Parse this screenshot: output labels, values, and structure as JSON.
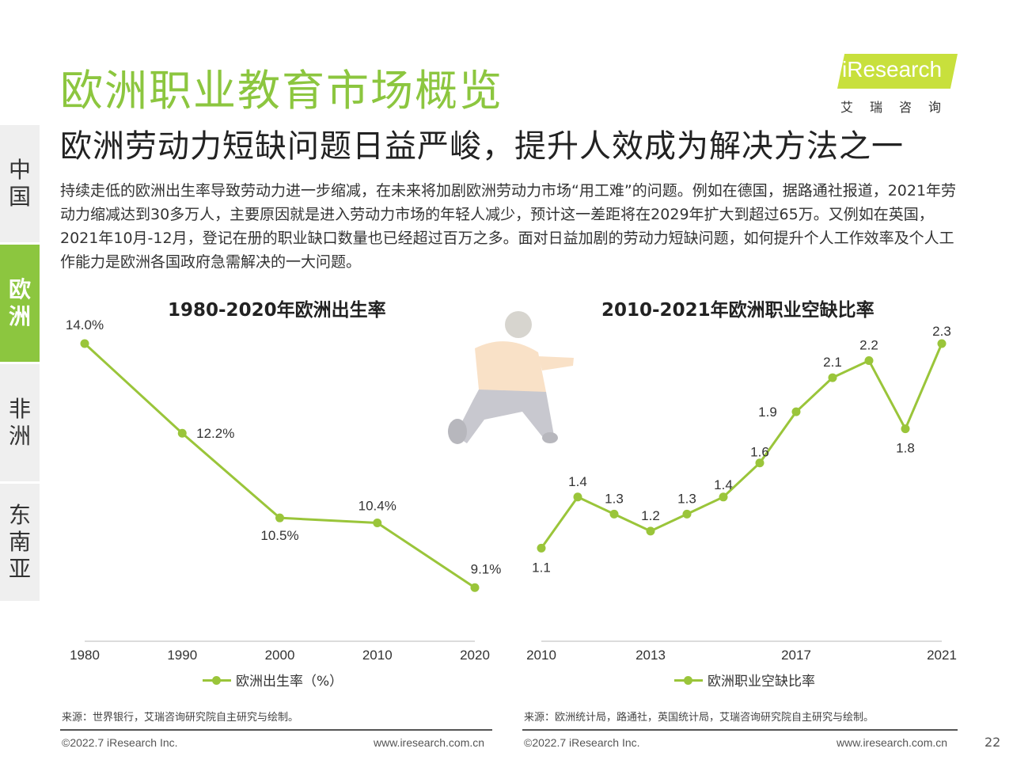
{
  "page": {
    "title": "欧洲职业教育市场概览",
    "subtitle": "欧洲劳动力短缺问题日益严峻，提升人效成为解决方法之一",
    "body": "持续走低的欧洲出生率导致劳动力进一步缩减，在未来将加剧欧洲劳动力市场“用工难”的问题。例如在德国，据路通社报道，2021年劳动力缩减达到30多万人，主要原因就是进入劳动力市场的年轻人减少，预计这一差距将在2029年扩大到超过65万。又例如在英国，2021年10月-12月，登记在册的职业缺口数量也已经超过百万之多。面对日益加剧的劳动力短缺问题，如何提升个人工作效率及个人工作能力是欧洲各国政府急需解决的一大问题。",
    "page_number": "22"
  },
  "logo": {
    "text": "iResearch",
    "cn": "艾瑞咨询"
  },
  "sidebar": {
    "items": [
      {
        "label": "中国",
        "active": false
      },
      {
        "label": "欧洲",
        "active": true
      },
      {
        "label": "非洲",
        "active": false
      },
      {
        "label": "东南亚",
        "active": false
      }
    ]
  },
  "colors": {
    "accent": "#8cc63f",
    "line": "#9ac53a"
  },
  "footer": {
    "left": {
      "source": "来源：世界银行，艾瑞咨询研究院自主研究与绘制。",
      "copyright": "©2022.7 iResearch Inc.",
      "url": "www.iresearch.com.cn"
    },
    "right": {
      "source": "来源：欧洲统计局，路通社，英国统计局，艾瑞咨询研究院自主研究与绘制。",
      "copyright": "©2022.7 iResearch Inc.",
      "url": "www.iresearch.com.cn"
    }
  },
  "chart_data": [
    {
      "type": "line",
      "title": "1980-2020年欧洲出生率",
      "x": [
        1980,
        1990,
        2000,
        2010,
        2020
      ],
      "x_tick_labels": [
        "1980",
        "1990",
        "2000",
        "2010",
        "2020"
      ],
      "series": [
        {
          "name": "欧洲出生率（%）",
          "values": [
            14.0,
            12.2,
            10.5,
            10.4,
            9.1
          ],
          "labels": [
            "14.0%",
            "12.2%",
            "10.5%",
            "10.4%",
            "9.1%"
          ]
        }
      ],
      "ylim": [
        8.5,
        14.0
      ],
      "grid": false,
      "legend": "bottom"
    },
    {
      "type": "line",
      "title": "2010-2021年欧洲职业空缺比率",
      "x": [
        2010,
        2011,
        2012,
        2013,
        2014,
        2015,
        2016,
        2017,
        2018,
        2019,
        2020,
        2021
      ],
      "x_tick_labels": [
        "2010",
        "2013",
        "2017",
        "2021"
      ],
      "series": [
        {
          "name": "欧洲职业空缺比率",
          "values": [
            1.1,
            1.4,
            1.3,
            1.2,
            1.3,
            1.4,
            1.6,
            1.9,
            2.1,
            2.2,
            1.8,
            2.3
          ],
          "labels": [
            "1.1",
            "1.4",
            "1.3",
            "1.2",
            "1.3",
            "1.4",
            "1.6",
            "1.9",
            "2.1",
            "2.2",
            "1.8",
            "2.3"
          ]
        }
      ],
      "ylim": [
        0.8,
        2.3
      ],
      "grid": false,
      "legend": "bottom"
    }
  ]
}
